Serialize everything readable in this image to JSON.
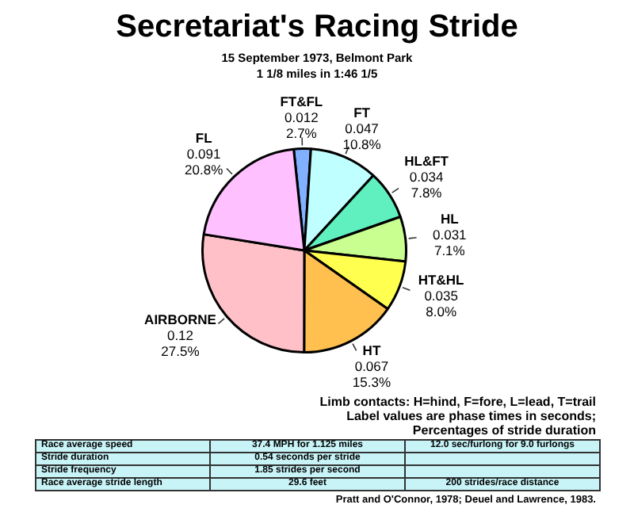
{
  "chart_data": {
    "type": "pie",
    "title": "Secretariat's Racing Stride",
    "subtitle": "15 September 1973, Belmont Park\n1 1/8 miles in 1:46 1/5",
    "categories": [
      "FT&FL",
      "FT",
      "HL&FT",
      "HL",
      "HT&HL",
      "HT",
      "AIRBORNE",
      "FL"
    ],
    "values": [
      2.7,
      10.8,
      7.8,
      7.1,
      8.0,
      15.3,
      27.5,
      20.8
    ],
    "value_labels": [
      "0.012\n2.7%",
      "0.047\n10.8%",
      "0.034\n7.8%",
      "0.031\n7.1%",
      "0.035\n8.0%",
      "0.067\n15.3%",
      "0.12\n27.5%",
      "0.091\n20.8%"
    ],
    "colors": [
      "#80b0ff",
      "#c0ffff",
      "#60f0c0",
      "#c8ff90",
      "#ffff50",
      "#ffc050",
      "#ffc0c8",
      "#ffc0ff"
    ],
    "legend": false,
    "annotations": [
      "Limb contacts: H=hind, F=fore, L=lead, T=trail",
      "Label values are phase times in seconds;",
      "Percentages of stride duration",
      "Race average speed",
      "37.4 MPH for 1.125 miles",
      "12.0 sec/furlong for 9.0 furlongs",
      "Stride duration",
      "0.54 seconds per stride",
      "Stride frequency",
      "1.85 strides per second",
      "Race average stride length",
      "29.6 feet",
      "200 strides/race distance",
      "Pratt and O'Connor, 1978; Deuel and Lawrence, 1983."
    ]
  }
}
